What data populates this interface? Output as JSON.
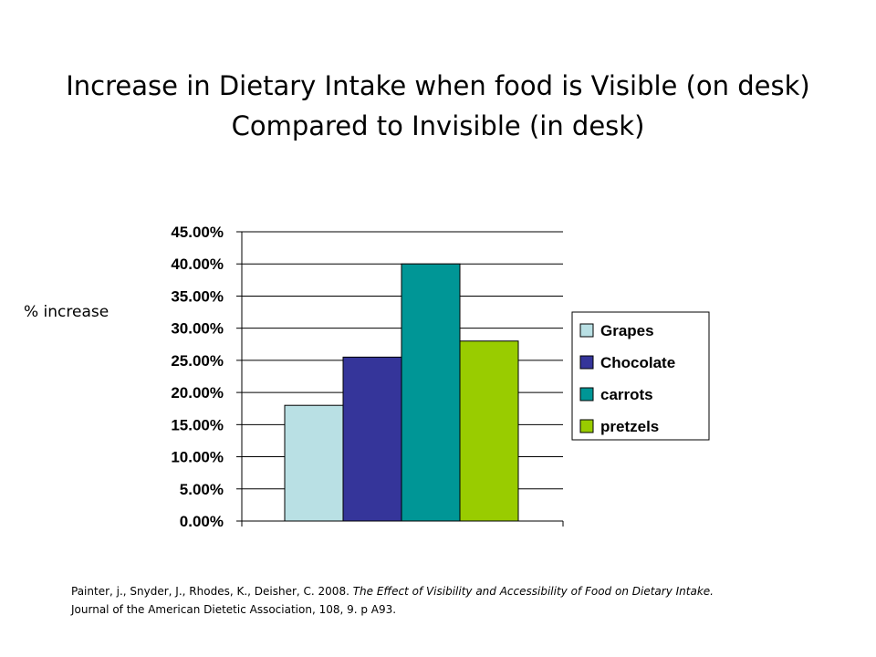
{
  "title_line1": "Increase in Dietary Intake when food is Visible (on desk)",
  "title_line2": "Compared to Invisible (in desk)",
  "y_axis_label": "% increase",
  "chart_data": {
    "type": "bar",
    "title": "Increase in Dietary Intake when food is Visible (on desk) Compared to Invisible (in desk)",
    "ylabel": "% increase",
    "xlabel": "",
    "ylim": [
      0,
      45
    ],
    "yticks": [
      "0.00%",
      "5.00%",
      "10.00%",
      "15.00%",
      "20.00%",
      "25.00%",
      "30.00%",
      "35.00%",
      "40.00%",
      "45.00%"
    ],
    "grid": true,
    "legend_position": "right",
    "series": [
      {
        "name": "Grapes",
        "value": 18,
        "color": "#b9e0e4"
      },
      {
        "name": "Chocolate",
        "value": 25.5,
        "color": "#35359a"
      },
      {
        "name": "carrots",
        "value": 40,
        "color": "#009696"
      },
      {
        "name": "pretzels",
        "value": 28,
        "color": "#99cc00"
      }
    ]
  },
  "citation": {
    "authors": "Painter, j., Snyder, J., Rhodes, K., Deisher, C. 2008. ",
    "article_title": "The Effect of Visibility and Accessibility of Food on Dietary Intake.",
    "journal": "Journal of the American Dietetic Association, 108, 9. p A93."
  }
}
